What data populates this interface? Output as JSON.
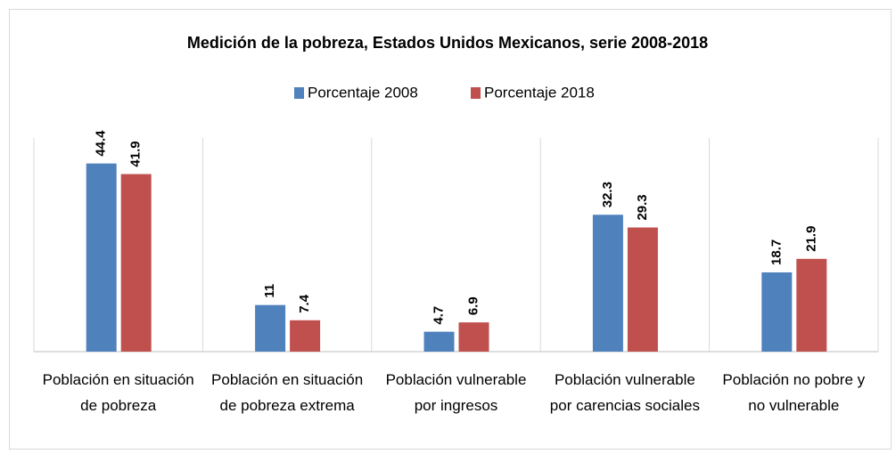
{
  "chart_data": {
    "type": "bar",
    "title": "Medición de la pobreza, Estados Unidos Mexicanos, serie 2008-2018",
    "categories": [
      "Población en situación de pobreza",
      "Población en situación de pobreza extrema",
      "Población vulnerable por ingresos",
      "Población vulnerable por carencias sociales",
      "Población no pobre y no vulnerable"
    ],
    "series": [
      {
        "name": "Porcentaje 2008",
        "color": "#4f81bd",
        "values": [
          44.4,
          11,
          4.7,
          32.3,
          18.7
        ]
      },
      {
        "name": "Porcentaje 2018",
        "color": "#c0504d",
        "values": [
          41.9,
          7.4,
          6.9,
          29.3,
          21.9
        ]
      }
    ],
    "ylim": [
      0,
      50
    ],
    "legend": "top"
  }
}
